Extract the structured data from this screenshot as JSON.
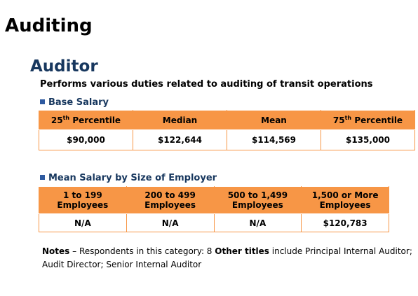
{
  "header": {
    "title": "Auditing"
  },
  "job": {
    "title": "Auditor",
    "description": "Performs various duties related to auditing of transit operations"
  },
  "base_salary": {
    "heading": "Base Salary",
    "headers": [
      {
        "main": "25",
        "sup": "th",
        "rest": " Percentile"
      },
      {
        "main": "Median"
      },
      {
        "main": "Mean"
      },
      {
        "main": "75",
        "sup": "th",
        "rest": " Percentile"
      }
    ],
    "values": [
      "$90,000",
      "$122,644",
      "$114,569",
      "$135,000"
    ]
  },
  "employer_size": {
    "heading": "Mean Salary by Size of Employer",
    "headers": [
      [
        "1 to 199",
        "Employees"
      ],
      [
        "200 to 499",
        "Employees"
      ],
      [
        "500 to 1,499",
        "Employees"
      ],
      [
        "1,500 or More",
        "Employees"
      ]
    ],
    "values": [
      "N/A",
      "N/A",
      "N/A",
      "$120,783"
    ]
  },
  "notes": {
    "label": "Notes",
    "text": " – Respondents in this category: 8 ",
    "other_label": "Other titles",
    "other_text": " include Principal Internal Auditor; Audit Director; Senior Internal Auditor"
  }
}
